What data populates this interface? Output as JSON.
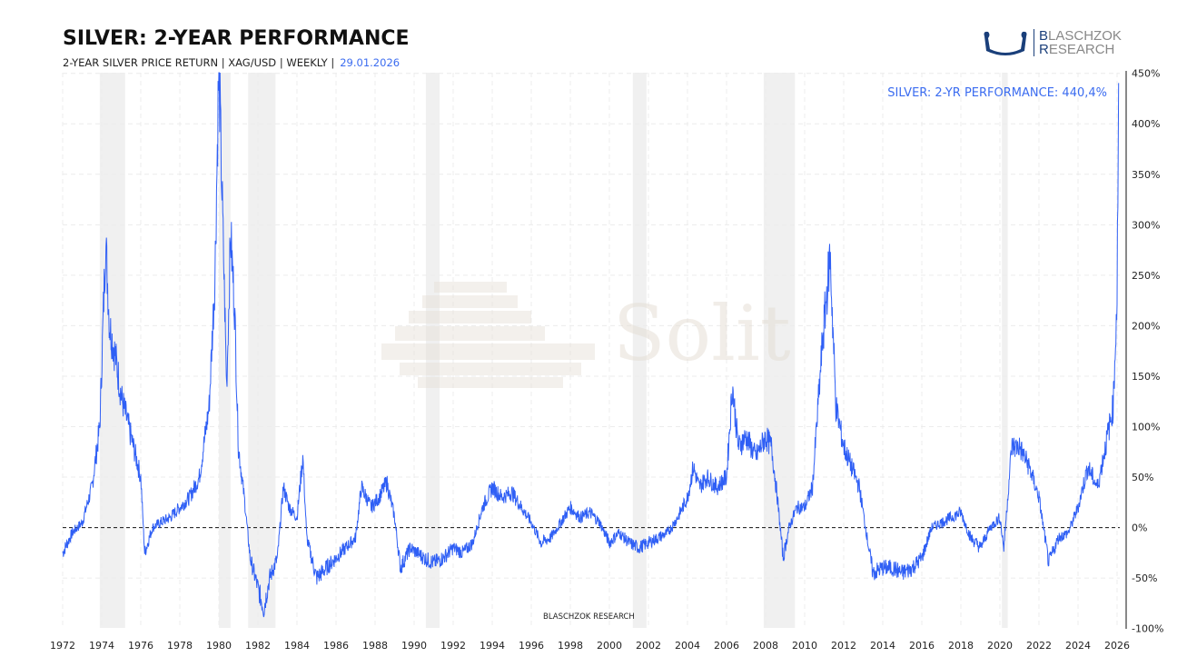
{
  "header": {
    "title": "SILVER: 2-YEAR PERFORMANCE",
    "subtitle": "2-YEAR SILVER PRICE RETURN | XAG/USD | WEEKLY |",
    "date": "29.01.2026"
  },
  "logo": {
    "line1_initial": "B",
    "line1_rest": "LASCHZOK",
    "line2_initial": "R",
    "line2_rest": "ESEARCH"
  },
  "watermark": "Solit",
  "footer_credit": "BLASCHZOK  RESEARCH",
  "colors": {
    "series": "#2f5ff5",
    "recession": "#f0f0f0",
    "annotation": "#3b6cf0"
  },
  "chart_data": {
    "type": "line",
    "title": "SILVER: 2-YEAR PERFORMANCE",
    "annotation": "SILVER: 2-YR PERFORMANCE: 440,4%",
    "xlim": [
      1972,
      2026.1
    ],
    "ylim": [
      -100,
      450
    ],
    "x_ticks": [
      "1972",
      "1974",
      "1976",
      "1978",
      "1980",
      "1982",
      "1984",
      "1986",
      "1988",
      "1990",
      "1992",
      "1994",
      "1996",
      "1998",
      "2000",
      "2002",
      "2004",
      "2006",
      "2008",
      "2010",
      "2012",
      "2014",
      "2016",
      "2018",
      "2020",
      "2022",
      "2024",
      "2026"
    ],
    "y_ticks": [
      {
        "v": 450,
        "label": "450%"
      },
      {
        "v": 400,
        "label": "400%"
      },
      {
        "v": 350,
        "label": "350%"
      },
      {
        "v": 300,
        "label": "300%"
      },
      {
        "v": 250,
        "label": "250%"
      },
      {
        "v": 200,
        "label": "200%"
      },
      {
        "v": 150,
        "label": "150%"
      },
      {
        "v": 100,
        "label": "100%"
      },
      {
        "v": 50,
        "label": "50%"
      },
      {
        "v": 0,
        "label": "0%"
      },
      {
        "v": -50,
        "label": "-50%"
      },
      {
        "v": -100,
        "label": "-100%"
      }
    ],
    "y_axis_position": "right",
    "grid": true,
    "zero_line": "dashed",
    "recession_bands": [
      [
        1973.9,
        1975.2
      ],
      [
        1980.0,
        1980.6
      ],
      [
        1981.5,
        1982.9
      ],
      [
        1990.6,
        1991.3
      ],
      [
        2001.2,
        2001.9
      ],
      [
        2007.9,
        2009.5
      ],
      [
        2020.1,
        2020.4
      ]
    ],
    "series": [
      {
        "name": "Silver 2-year return (%)",
        "points": [
          [
            1972.0,
            -25
          ],
          [
            1972.5,
            -5
          ],
          [
            1973.0,
            5
          ],
          [
            1973.5,
            40
          ],
          [
            1973.9,
            100
          ],
          [
            1974.2,
            285
          ],
          [
            1974.4,
            200
          ],
          [
            1974.7,
            170
          ],
          [
            1975.0,
            130
          ],
          [
            1975.5,
            90
          ],
          [
            1976.0,
            50
          ],
          [
            1976.2,
            -25
          ],
          [
            1976.6,
            0
          ],
          [
            1977,
            5
          ],
          [
            1977.5,
            10
          ],
          [
            1978,
            20
          ],
          [
            1978.5,
            30
          ],
          [
            1979,
            50
          ],
          [
            1979.5,
            120
          ],
          [
            1979.8,
            250
          ],
          [
            1980.0,
            460
          ],
          [
            1980.2,
            300
          ],
          [
            1980.4,
            140
          ],
          [
            1980.6,
            290
          ],
          [
            1980.8,
            220
          ],
          [
            1981.0,
            80
          ],
          [
            1981.3,
            30
          ],
          [
            1981.6,
            -30
          ],
          [
            1982.0,
            -60
          ],
          [
            1982.3,
            -80
          ],
          [
            1982.6,
            -50
          ],
          [
            1983.0,
            -30
          ],
          [
            1983.3,
            40
          ],
          [
            1983.6,
            20
          ],
          [
            1984.0,
            10
          ],
          [
            1984.3,
            70
          ],
          [
            1984.5,
            -10
          ],
          [
            1985,
            -50
          ],
          [
            1985.5,
            -40
          ],
          [
            1986,
            -30
          ],
          [
            1986.5,
            -20
          ],
          [
            1987,
            -10
          ],
          [
            1987.3,
            40
          ],
          [
            1987.8,
            20
          ],
          [
            1988.2,
            30
          ],
          [
            1988.6,
            45
          ],
          [
            1989,
            10
          ],
          [
            1989.3,
            -40
          ],
          [
            1989.8,
            -20
          ],
          [
            1990.5,
            -30
          ],
          [
            1991,
            -35
          ],
          [
            1991.5,
            -30
          ],
          [
            1992,
            -20
          ],
          [
            1992.5,
            -25
          ],
          [
            1993,
            -15
          ],
          [
            1993.5,
            20
          ],
          [
            1994,
            40
          ],
          [
            1994.5,
            30
          ],
          [
            1995,
            35
          ],
          [
            1995.5,
            20
          ],
          [
            1996,
            5
          ],
          [
            1996.5,
            -15
          ],
          [
            1997,
            -10
          ],
          [
            1997.5,
            5
          ],
          [
            1998,
            20
          ],
          [
            1998.5,
            10
          ],
          [
            1999,
            15
          ],
          [
            1999.5,
            5
          ],
          [
            2000,
            -15
          ],
          [
            2000.5,
            -5
          ],
          [
            2001,
            -15
          ],
          [
            2001.5,
            -20
          ],
          [
            2002,
            -15
          ],
          [
            2002.5,
            -10
          ],
          [
            2003,
            -5
          ],
          [
            2003.5,
            10
          ],
          [
            2004,
            30
          ],
          [
            2004.3,
            60
          ],
          [
            2004.6,
            40
          ],
          [
            2005,
            50
          ],
          [
            2005.5,
            40
          ],
          [
            2006,
            50
          ],
          [
            2006.3,
            140
          ],
          [
            2006.6,
            80
          ],
          [
            2007,
            90
          ],
          [
            2007.5,
            70
          ],
          [
            2008,
            90
          ],
          [
            2008.3,
            80
          ],
          [
            2008.6,
            30
          ],
          [
            2008.9,
            -30
          ],
          [
            2009.2,
            0
          ],
          [
            2009.6,
            20
          ],
          [
            2010,
            20
          ],
          [
            2010.4,
            40
          ],
          [
            2010.9,
            180
          ],
          [
            2011.3,
            270
          ],
          [
            2011.6,
            120
          ],
          [
            2012.0,
            80
          ],
          [
            2012.4,
            60
          ],
          [
            2012.8,
            40
          ],
          [
            2013.2,
            -10
          ],
          [
            2013.5,
            -45
          ],
          [
            2014,
            -40
          ],
          [
            2014.5,
            -40
          ],
          [
            2015,
            -45
          ],
          [
            2015.5,
            -40
          ],
          [
            2016,
            -30
          ],
          [
            2016.5,
            0
          ],
          [
            2017,
            5
          ],
          [
            2017.5,
            10
          ],
          [
            2018,
            15
          ],
          [
            2018.5,
            -10
          ],
          [
            2019,
            -20
          ],
          [
            2019.5,
            0
          ],
          [
            2020,
            10
          ],
          [
            2020.2,
            -20
          ],
          [
            2020.6,
            80
          ],
          [
            2021,
            80
          ],
          [
            2021.5,
            60
          ],
          [
            2022,
            30
          ],
          [
            2022.5,
            -35
          ],
          [
            2023,
            -10
          ],
          [
            2023.5,
            -5
          ],
          [
            2024,
            20
          ],
          [
            2024.5,
            60
          ],
          [
            2025,
            40
          ],
          [
            2025.5,
            90
          ],
          [
            2025.8,
            120
          ],
          [
            2026.0,
            230
          ],
          [
            2026.08,
            440.4
          ]
        ]
      }
    ]
  }
}
